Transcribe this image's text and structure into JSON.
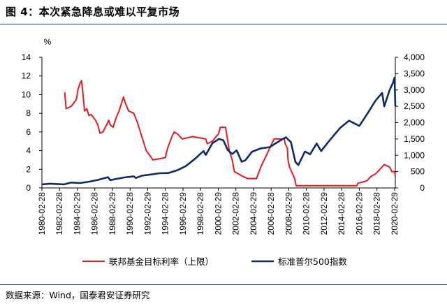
{
  "figure": {
    "title": "图 4：本次紧急降息或难以平复市场",
    "source": "数据来源：Wind，国泰君安证券研究"
  },
  "colors": {
    "fed_rate": "#e31b23",
    "sp500": "#0f2a68",
    "rule": "#1f3b73"
  },
  "chart_data": {
    "type": "line",
    "title": "",
    "y_unit_label": "%",
    "left_axis": {
      "min": 0,
      "max": 14,
      "ticks": [
        "0",
        "2",
        "4",
        "6",
        "8",
        "10",
        "12",
        "14"
      ],
      "series": "联邦基金目标利率（上限）"
    },
    "right_axis": {
      "min": 0,
      "max": 4000,
      "ticks": [
        "0",
        "500",
        "1,000",
        "1,500",
        "2,000",
        "2,500",
        "3,000",
        "3,500",
        "4,000"
      ],
      "series": "标准普尔500指数"
    },
    "x_ticks": [
      "1980-02-28",
      "1982-02-28",
      "1984-02-29",
      "1986-02-28",
      "1988-02-29",
      "1990-02-28",
      "1992-02-29",
      "1994-02-28",
      "1996-02-29",
      "1998-02-28",
      "2000-02-29",
      "2002-02-28",
      "2004-02-29",
      "2006-02-28",
      "2008-02-29",
      "2010-02-28",
      "2012-02-29",
      "2014-02-28",
      "2016-02-29",
      "2018-02-28",
      "2020-02-29"
    ],
    "x_range": [
      "1980-02",
      "2020-03"
    ],
    "legend_position": "bottom",
    "grid": false,
    "series": [
      {
        "name": "联邦基金目标利率（上限）",
        "axis": "left",
        "points": [
          [
            "1982-09",
            10.25
          ],
          [
            "1982-11",
            8.5
          ],
          [
            "1983-06",
            8.75
          ],
          [
            "1984-01",
            9.5
          ],
          [
            "1984-03",
            10.5
          ],
          [
            "1984-06",
            11.25
          ],
          [
            "1984-08",
            11.5
          ],
          [
            "1984-10",
            10.0
          ],
          [
            "1984-12",
            8.25
          ],
          [
            "1985-03",
            8.5
          ],
          [
            "1985-06",
            7.75
          ],
          [
            "1985-09",
            7.875
          ],
          [
            "1986-03",
            7.25
          ],
          [
            "1986-06",
            6.75
          ],
          [
            "1986-09",
            5.875
          ],
          [
            "1987-01",
            6.0
          ],
          [
            "1987-06",
            6.75
          ],
          [
            "1987-09",
            7.25
          ],
          [
            "1987-11",
            6.75
          ],
          [
            "1988-03",
            6.5
          ],
          [
            "1988-07",
            7.5
          ],
          [
            "1988-11",
            8.25
          ],
          [
            "1989-02",
            9.0
          ],
          [
            "1989-05",
            9.75
          ],
          [
            "1989-08",
            9.0
          ],
          [
            "1989-12",
            8.25
          ],
          [
            "1990-07",
            8.0
          ],
          [
            "1990-12",
            7.0
          ],
          [
            "1991-05",
            5.75
          ],
          [
            "1991-12",
            4.0
          ],
          [
            "1992-07",
            3.25
          ],
          [
            "1992-09",
            3.0
          ],
          [
            "1994-02",
            3.25
          ],
          [
            "1994-05",
            4.25
          ],
          [
            "1994-11",
            5.5
          ],
          [
            "1995-02",
            6.0
          ],
          [
            "1995-07",
            5.75
          ],
          [
            "1996-01",
            5.25
          ],
          [
            "1997-03",
            5.5
          ],
          [
            "1998-09",
            5.25
          ],
          [
            "1998-11",
            4.75
          ],
          [
            "1999-06",
            5.0
          ],
          [
            "1999-11",
            5.5
          ],
          [
            "2000-02",
            5.75
          ],
          [
            "2000-05",
            6.5
          ],
          [
            "2000-12",
            6.5
          ],
          [
            "2001-01",
            6.0
          ],
          [
            "2001-05",
            4.0
          ],
          [
            "2001-09",
            3.0
          ],
          [
            "2001-12",
            1.75
          ],
          [
            "2002-11",
            1.25
          ],
          [
            "2003-06",
            1.0
          ],
          [
            "2004-06",
            1.0
          ],
          [
            "2004-12",
            2.25
          ],
          [
            "2005-06",
            3.25
          ],
          [
            "2005-12",
            4.25
          ],
          [
            "2006-06",
            5.25
          ],
          [
            "2007-08",
            5.25
          ],
          [
            "2007-09",
            4.75
          ],
          [
            "2007-12",
            4.25
          ],
          [
            "2008-01",
            3.0
          ],
          [
            "2008-03",
            2.25
          ],
          [
            "2008-10",
            1.0
          ],
          [
            "2008-12",
            0.25
          ],
          [
            "2015-11",
            0.25
          ],
          [
            "2015-12",
            0.5
          ],
          [
            "2016-12",
            0.75
          ],
          [
            "2017-06",
            1.25
          ],
          [
            "2017-12",
            1.5
          ],
          [
            "2018-06",
            2.0
          ],
          [
            "2018-12",
            2.5
          ],
          [
            "2019-07",
            2.25
          ],
          [
            "2019-09",
            2.0
          ],
          [
            "2019-10",
            1.75
          ],
          [
            "2020-02",
            1.75
          ],
          [
            "2020-03",
            1.25
          ]
        ]
      },
      {
        "name": "标准普尔500指数",
        "axis": "right",
        "points": [
          [
            "1980-02",
            110
          ],
          [
            "1981-01",
            130
          ],
          [
            "1982-08",
            110
          ],
          [
            "1983-06",
            165
          ],
          [
            "1984-06",
            150
          ],
          [
            "1985-06",
            190
          ],
          [
            "1986-06",
            245
          ],
          [
            "1987-08",
            330
          ],
          [
            "1987-11",
            240
          ],
          [
            "1988-06",
            270
          ],
          [
            "1989-06",
            320
          ],
          [
            "1990-07",
            355
          ],
          [
            "1990-10",
            305
          ],
          [
            "1991-06",
            375
          ],
          [
            "1992-06",
            410
          ],
          [
            "1993-06",
            450
          ],
          [
            "1994-06",
            455
          ],
          [
            "1995-06",
            540
          ],
          [
            "1996-06",
            670
          ],
          [
            "1997-06",
            885
          ],
          [
            "1998-06",
            1130
          ],
          [
            "1998-09",
            1010
          ],
          [
            "1999-06",
            1370
          ],
          [
            "2000-03",
            1500
          ],
          [
            "2000-09",
            1460
          ],
          [
            "2001-03",
            1160
          ],
          [
            "2001-09",
            1040
          ],
          [
            "2002-03",
            1150
          ],
          [
            "2002-10",
            800
          ],
          [
            "2003-03",
            850
          ],
          [
            "2003-12",
            1110
          ],
          [
            "2004-12",
            1210
          ],
          [
            "2005-12",
            1250
          ],
          [
            "2006-12",
            1420
          ],
          [
            "2007-10",
            1550
          ],
          [
            "2008-05",
            1400
          ],
          [
            "2008-11",
            800
          ],
          [
            "2009-03",
            700
          ],
          [
            "2009-12",
            1115
          ],
          [
            "2010-07",
            1030
          ],
          [
            "2011-04",
            1360
          ],
          [
            "2011-10",
            1130
          ],
          [
            "2012-09",
            1440
          ],
          [
            "2013-12",
            1840
          ],
          [
            "2014-12",
            2060
          ],
          [
            "2015-08",
            1970
          ],
          [
            "2016-02",
            1900
          ],
          [
            "2016-12",
            2240
          ],
          [
            "2017-12",
            2670
          ],
          [
            "2018-09",
            2910
          ],
          [
            "2018-12",
            2500
          ],
          [
            "2019-07",
            2980
          ],
          [
            "2019-12",
            3230
          ],
          [
            "2020-02",
            3380
          ],
          [
            "2020-03",
            2500
          ]
        ]
      }
    ]
  }
}
